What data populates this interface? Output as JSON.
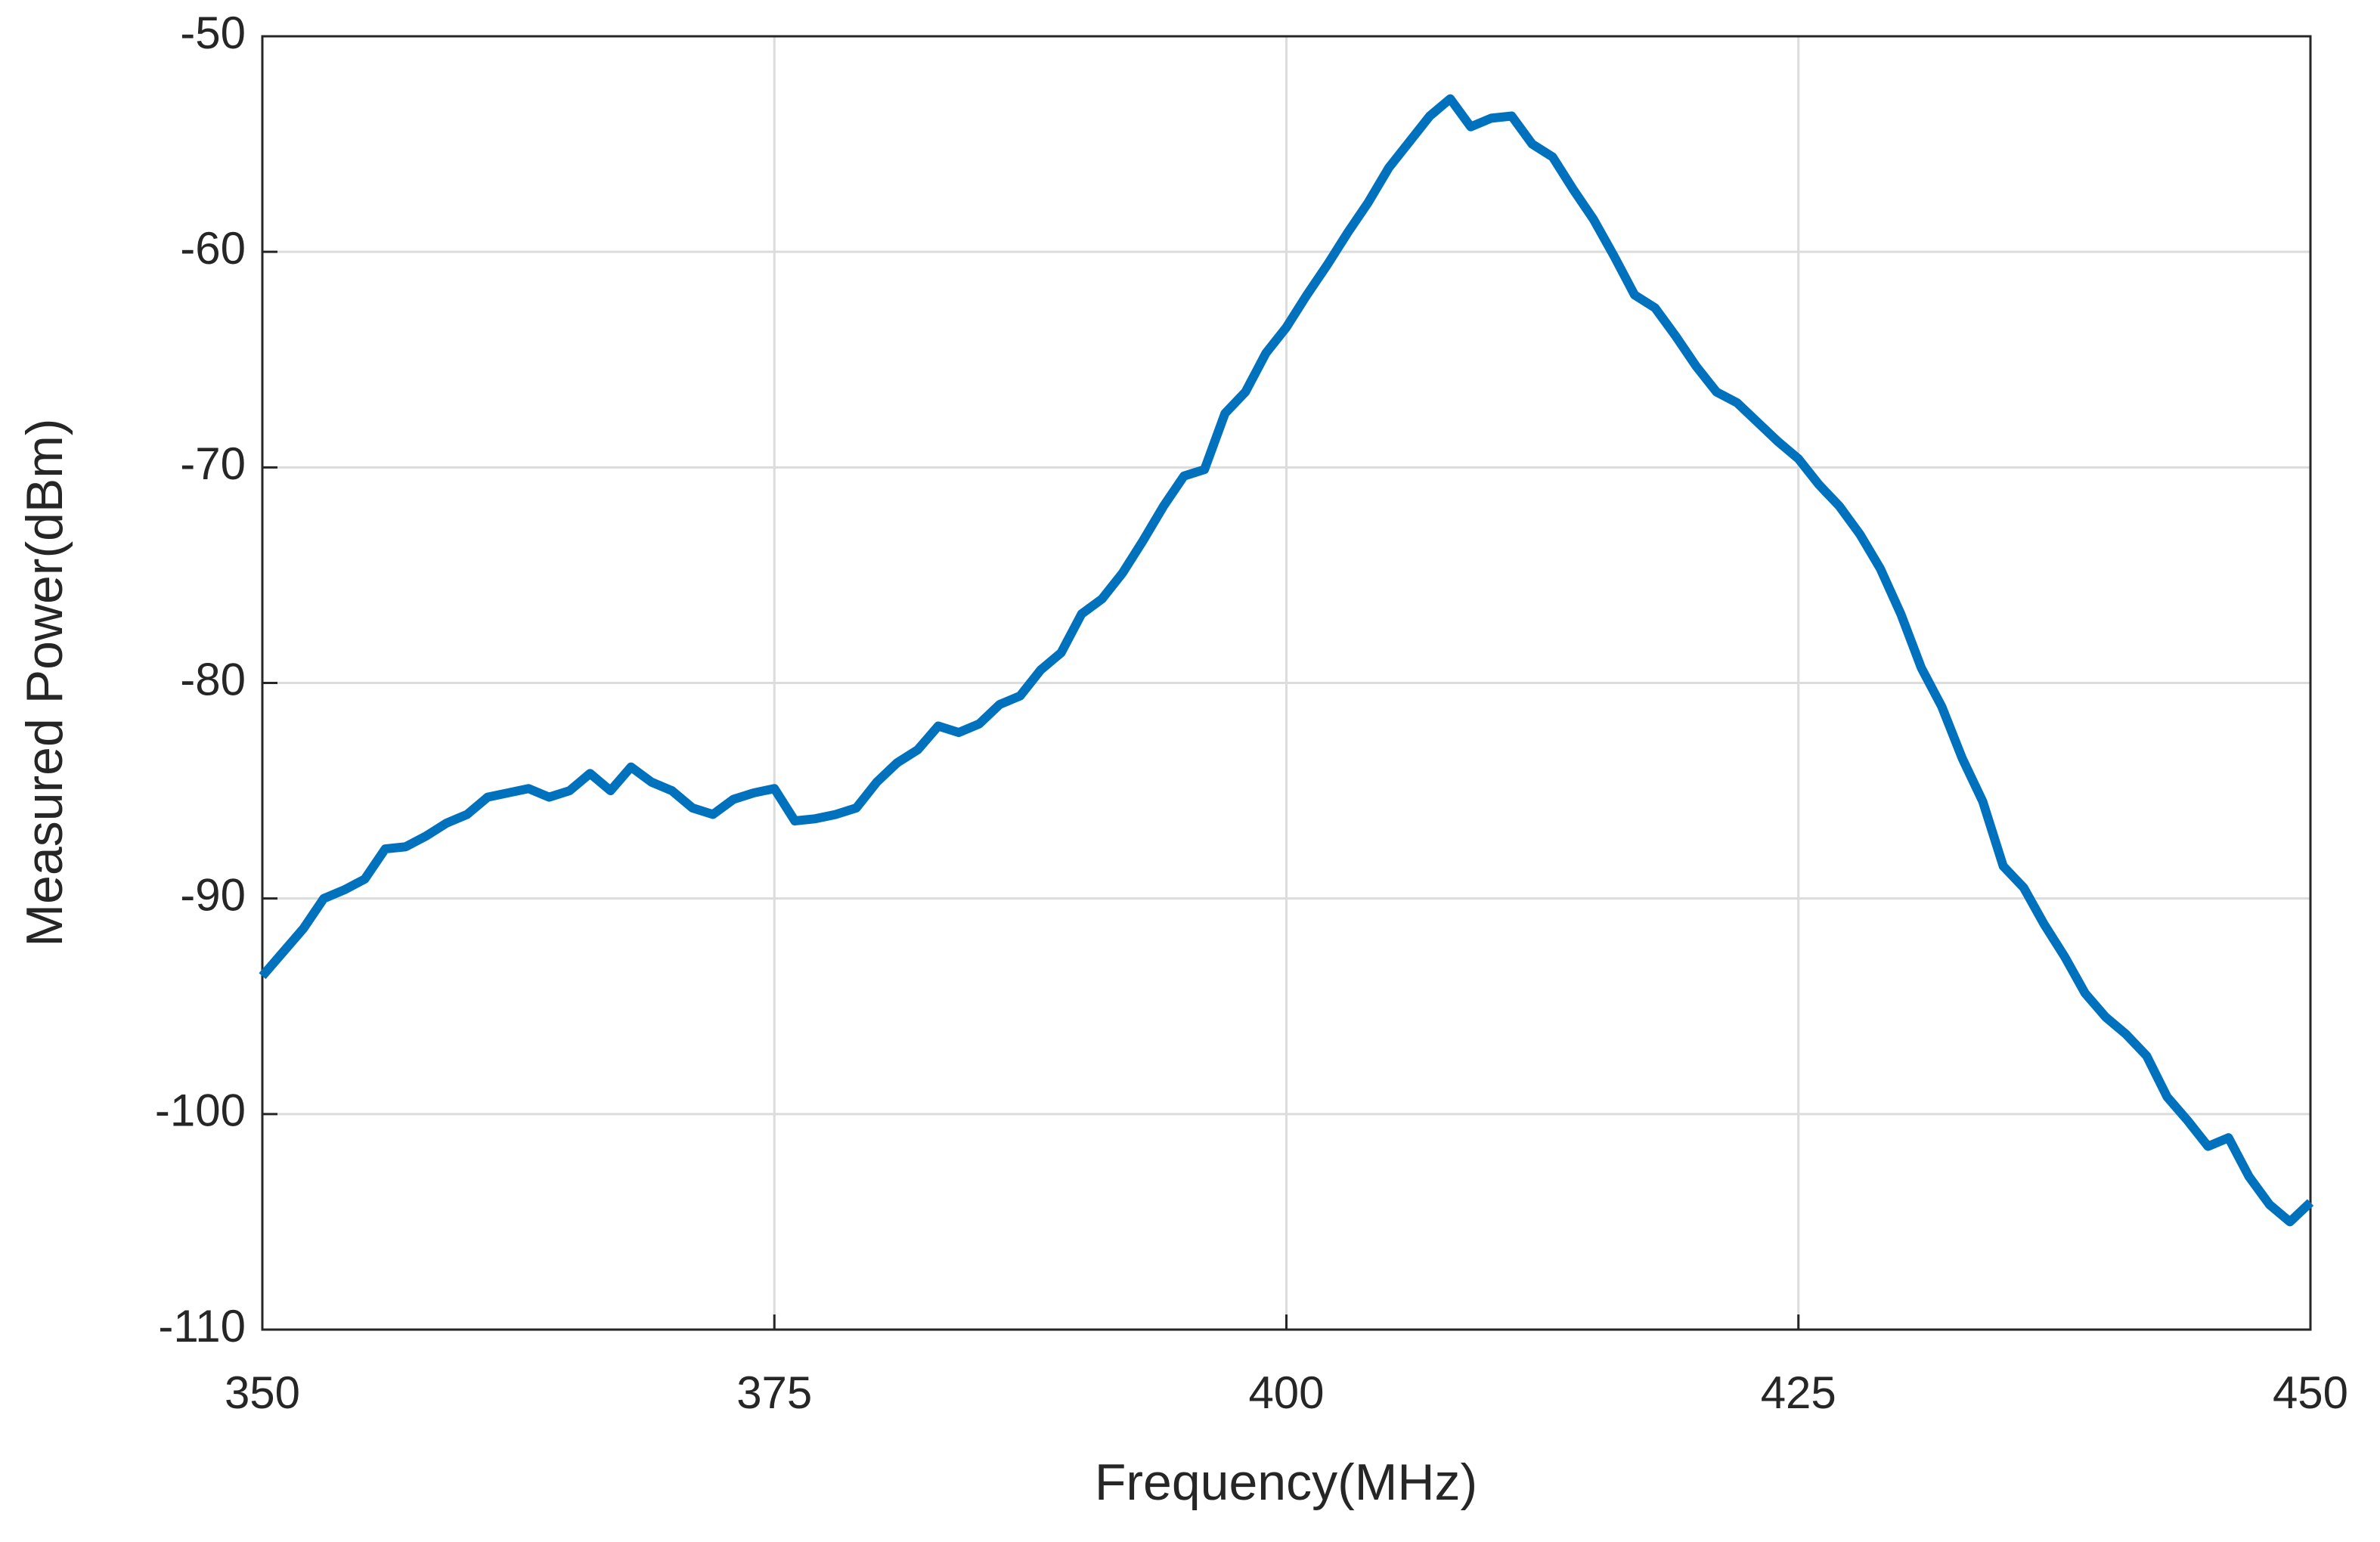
{
  "chart_data": {
    "type": "line",
    "x_label": "Frequency(MHz)",
    "y_label": "Measured Power(dBm)",
    "xlim": [
      350,
      450
    ],
    "xticks": [
      350,
      375,
      400,
      425,
      450
    ],
    "ylim": [
      -110,
      -50
    ],
    "yticks": [
      -110,
      -100,
      -90,
      -80,
      -70,
      -60,
      -50
    ],
    "grid": true,
    "x": [
      350,
      351,
      352,
      353,
      354,
      355,
      356,
      357,
      358,
      359,
      360,
      361,
      362,
      363,
      364,
      365,
      366,
      367,
      368,
      369,
      370,
      371,
      372,
      373,
      374,
      375,
      376,
      377,
      378,
      379,
      380,
      381,
      382,
      383,
      384,
      385,
      386,
      387,
      388,
      389,
      390,
      391,
      392,
      393,
      394,
      395,
      396,
      397,
      398,
      399,
      400,
      401,
      402,
      403,
      404,
      405,
      406,
      407,
      408,
      409,
      410,
      411,
      412,
      413,
      414,
      415,
      416,
      417,
      418,
      419,
      420,
      421,
      422,
      423,
      424,
      425,
      426,
      427,
      428,
      429,
      430,
      431,
      432,
      433,
      434,
      435,
      436,
      437,
      438,
      439,
      440,
      441,
      442,
      443,
      444,
      445,
      446,
      447,
      448,
      449,
      450
    ],
    "series": [
      {
        "name": "Measured Power",
        "color": "#0072bd",
        "values": [
          -93.6,
          -92.5,
          -91.4,
          -90.0,
          -89.6,
          -89.1,
          -87.7,
          -87.6,
          -87.1,
          -86.5,
          -86.1,
          -85.3,
          -85.1,
          -84.9,
          -85.3,
          -85.0,
          -84.2,
          -85.0,
          -83.9,
          -84.6,
          -85.0,
          -85.8,
          -86.1,
          -85.4,
          -85.1,
          -84.9,
          -86.4,
          -86.3,
          -86.1,
          -85.8,
          -84.6,
          -83.7,
          -83.1,
          -82.0,
          -82.3,
          -81.9,
          -81.0,
          -80.6,
          -79.4,
          -78.6,
          -76.8,
          -76.1,
          -74.9,
          -73.4,
          -71.8,
          -70.4,
          -70.1,
          -67.5,
          -66.5,
          -64.7,
          -63.5,
          -62.0,
          -60.6,
          -59.1,
          -57.7,
          -56.1,
          -54.9,
          -53.7,
          -52.9,
          -54.2,
          -53.8,
          -53.7,
          -55.0,
          -55.6,
          -57.1,
          -58.5,
          -60.2,
          -62.0,
          -62.6,
          -63.9,
          -65.3,
          -66.5,
          -67.0,
          -67.9,
          -68.8,
          -69.6,
          -70.8,
          -71.8,
          -73.1,
          -74.7,
          -76.8,
          -79.3,
          -81.1,
          -83.5,
          -85.5,
          -88.5,
          -89.5,
          -91.2,
          -92.7,
          -94.4,
          -95.5,
          -96.3,
          -97.3,
          -99.2,
          -100.3,
          -101.5,
          -101.1,
          -102.9,
          -104.2,
          -105.0,
          -104.1
        ]
      }
    ]
  }
}
